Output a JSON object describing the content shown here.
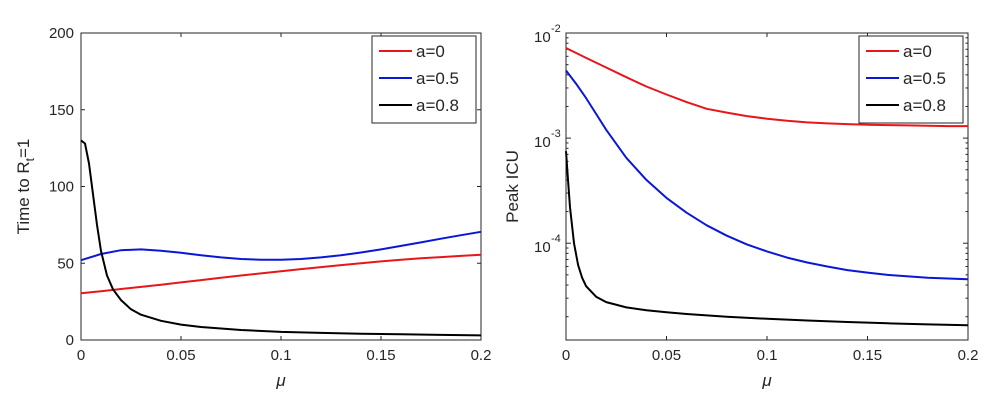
{
  "chart_data": [
    {
      "type": "line",
      "ylabel_main": "Time to R",
      "ylabel_sub": "t",
      "ylabel_tail": "=1",
      "xlabel": "μ",
      "xlim": [
        0,
        0.2
      ],
      "ylim": [
        0,
        200
      ],
      "yscale": "linear",
      "grid": false,
      "legend_position": "top-right",
      "xticks": [
        0,
        0.05,
        0.1,
        0.15,
        0.2
      ],
      "xtick_labels": [
        "0",
        "0.05",
        "0.1",
        "0.15",
        "0.2"
      ],
      "yticks": [
        0,
        50,
        100,
        150,
        200
      ],
      "ytick_labels": [
        "0",
        "50",
        "100",
        "150",
        "200"
      ],
      "series": [
        {
          "name": "a=0",
          "color": "#e8161b",
          "x": [
            0,
            0.01,
            0.02,
            0.03,
            0.04,
            0.05,
            0.06,
            0.07,
            0.08,
            0.09,
            0.1,
            0.11,
            0.12,
            0.13,
            0.14,
            0.15,
            0.16,
            0.17,
            0.18,
            0.19,
            0.2
          ],
          "y": [
            30.5,
            31.8,
            33.2,
            34.6,
            36,
            37.5,
            39,
            40.5,
            42,
            43.4,
            44.8,
            46.2,
            47.5,
            48.8,
            50,
            51.2,
            52.3,
            53.2,
            54,
            54.8,
            55.5
          ]
        },
        {
          "name": "a=0.5",
          "color": "#0a17d6",
          "x": [
            0,
            0.01,
            0.02,
            0.03,
            0.04,
            0.05,
            0.06,
            0.07,
            0.08,
            0.09,
            0.1,
            0.11,
            0.12,
            0.13,
            0.14,
            0.15,
            0.16,
            0.17,
            0.18,
            0.19,
            0.2
          ],
          "y": [
            52,
            56,
            58.5,
            59,
            58.2,
            56.8,
            55.2,
            53.8,
            52.8,
            52.3,
            52.3,
            52.8,
            53.8,
            55.2,
            57,
            59,
            61.3,
            63.6,
            66,
            68.3,
            70.5
          ]
        },
        {
          "name": "a=0.8",
          "color": "#000000",
          "x": [
            0,
            0.002,
            0.004,
            0.006,
            0.008,
            0.01,
            0.013,
            0.016,
            0.02,
            0.025,
            0.03,
            0.04,
            0.05,
            0.06,
            0.08,
            0.1,
            0.12,
            0.14,
            0.16,
            0.18,
            0.2
          ],
          "y": [
            130,
            128,
            115,
            95,
            75,
            58,
            42,
            33,
            26,
            20,
            16.5,
            12.5,
            10,
            8.5,
            6.5,
            5.3,
            4.6,
            4.1,
            3.7,
            3.3,
            3
          ]
        }
      ]
    },
    {
      "type": "line",
      "ylabel": "Peak ICU",
      "xlabel": "μ",
      "xlim": [
        0,
        0.2
      ],
      "ylim": [
        1.2e-05,
        0.01
      ],
      "yscale": "log",
      "grid": false,
      "legend_position": "top-right",
      "xticks": [
        0,
        0.05,
        0.1,
        0.15,
        0.2
      ],
      "xtick_labels": [
        "0",
        "0.05",
        "0.1",
        "0.15",
        "0.2"
      ],
      "yticks": [
        0.0001,
        0.001,
        0.01
      ],
      "ytick_bases": [
        "10",
        "10",
        "10"
      ],
      "ytick_exponents": [
        "-4",
        "-3",
        "-2"
      ],
      "series": [
        {
          "name": "a=0",
          "color": "#e8161b",
          "x": [
            0,
            0.01,
            0.02,
            0.03,
            0.04,
            0.05,
            0.06,
            0.07,
            0.08,
            0.09,
            0.1,
            0.11,
            0.12,
            0.13,
            0.14,
            0.15,
            0.16,
            0.17,
            0.18,
            0.19,
            0.2
          ],
          "y": [
            0.0072,
            0.0058,
            0.0047,
            0.0038,
            0.0031,
            0.0026,
            0.0022,
            0.0019,
            0.00175,
            0.00162,
            0.00153,
            0.00146,
            0.00141,
            0.00138,
            0.00136,
            0.00134,
            0.00133,
            0.00132,
            0.00131,
            0.0013,
            0.0013
          ]
        },
        {
          "name": "a=0.5",
          "color": "#0a17d6",
          "x": [
            0,
            0.005,
            0.01,
            0.015,
            0.02,
            0.03,
            0.04,
            0.05,
            0.06,
            0.07,
            0.08,
            0.09,
            0.1,
            0.11,
            0.12,
            0.13,
            0.14,
            0.15,
            0.16,
            0.18,
            0.2
          ],
          "y": [
            0.0044,
            0.0033,
            0.0024,
            0.0017,
            0.0012,
            0.00065,
            0.0004,
            0.00027,
            0.000195,
            0.000148,
            0.000118,
            9.75e-05,
            8.35e-05,
            7.3e-05,
            6.55e-05,
            6e-05,
            5.55e-05,
            5.25e-05,
            5e-05,
            4.7e-05,
            4.55e-05
          ]
        },
        {
          "name": "a=0.8",
          "color": "#000000",
          "x": [
            0,
            0.001,
            0.002,
            0.004,
            0.006,
            0.008,
            0.01,
            0.015,
            0.02,
            0.03,
            0.04,
            0.05,
            0.06,
            0.08,
            0.1,
            0.12,
            0.14,
            0.16,
            0.18,
            0.2
          ],
          "y": [
            0.00075,
            0.0004,
            0.00022,
            0.0001,
            6.2e-05,
            4.7e-05,
            3.9e-05,
            3.1e-05,
            2.75e-05,
            2.45e-05,
            2.3e-05,
            2.2e-05,
            2.12e-05,
            2e-05,
            1.91e-05,
            1.84e-05,
            1.78e-05,
            1.73e-05,
            1.69e-05,
            1.66e-05
          ]
        }
      ]
    }
  ]
}
